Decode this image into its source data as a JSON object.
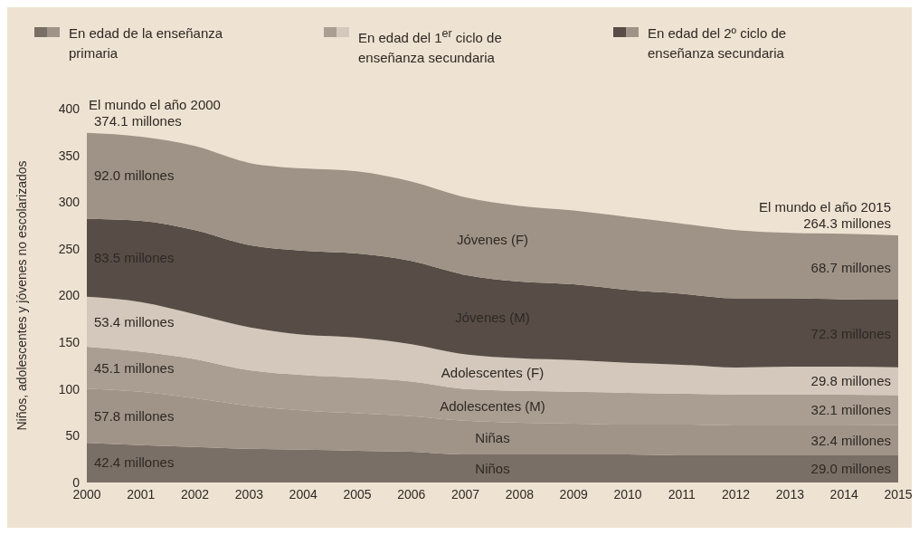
{
  "chart_data": {
    "type": "area",
    "stacked": true,
    "ylabel": "Niños, adolescentes y jóvenes no escolarizados",
    "x": [
      2000,
      2001,
      2002,
      2003,
      2004,
      2005,
      2006,
      2007,
      2008,
      2009,
      2010,
      2011,
      2012,
      2013,
      2014,
      2015
    ],
    "xlim": [
      2000,
      2015
    ],
    "xticks": [
      2000,
      2001,
      2002,
      2003,
      2004,
      2005,
      2006,
      2007,
      2008,
      2009,
      2010,
      2011,
      2012,
      2013,
      2014,
      2015
    ],
    "ylim": [
      0,
      400
    ],
    "yticks": [
      0,
      50,
      100,
      150,
      200,
      250,
      300,
      350,
      400
    ],
    "grid": false,
    "series": [
      {
        "name": "Niños",
        "color": "#7a6f66",
        "values": [
          42.4,
          40,
          38,
          36,
          35,
          34,
          33,
          30,
          30,
          30,
          30,
          29,
          29,
          29,
          29,
          29.0
        ],
        "value_labels": [
          "42.4 millones",
          null,
          null,
          null,
          null,
          null,
          null,
          null,
          null,
          null,
          null,
          null,
          null,
          null,
          null,
          "29.0 millones"
        ]
      },
      {
        "name": "Niñas",
        "color": "#a09489",
        "values": [
          57.8,
          57,
          52,
          46,
          42,
          40,
          38,
          36,
          34,
          33,
          32,
          33,
          32,
          32,
          32,
          32.4
        ],
        "value_labels": [
          "57.8 millones",
          null,
          null,
          null,
          null,
          null,
          null,
          null,
          null,
          null,
          null,
          null,
          null,
          null,
          null,
          "32.4 millones"
        ]
      },
      {
        "name": "Adolescentes (M)",
        "color": "#aa9e92",
        "values": [
          45.1,
          43,
          42,
          38,
          38,
          38,
          37,
          34,
          34,
          34,
          34,
          33,
          33,
          33,
          33,
          32.1
        ],
        "value_labels": [
          "45.1 millones",
          null,
          null,
          null,
          null,
          null,
          null,
          null,
          null,
          null,
          null,
          null,
          null,
          null,
          null,
          "32.1 millones"
        ]
      },
      {
        "name": "Adolescentes (F)",
        "color": "#d3c8bb",
        "values": [
          53.4,
          53,
          48,
          46,
          43,
          43,
          40,
          37,
          35,
          34,
          32,
          31,
          29,
          30,
          30,
          29.8
        ],
        "value_labels": [
          "53.4 millones",
          null,
          null,
          null,
          null,
          null,
          null,
          null,
          null,
          null,
          null,
          null,
          null,
          null,
          null,
          "29.8 millones"
        ]
      },
      {
        "name": "Jóvenes (M)",
        "color": "#574d46",
        "values": [
          83.5,
          87,
          90,
          88,
          90,
          90,
          89,
          85,
          82,
          81,
          78,
          76,
          74,
          73,
          72,
          72.3
        ],
        "value_labels": [
          "83.5 millones",
          null,
          null,
          null,
          null,
          null,
          null,
          null,
          null,
          null,
          null,
          null,
          null,
          null,
          null,
          "72.3 millones"
        ]
      },
      {
        "name": "Jóvenes (F)",
        "color": "#9f9387",
        "values": [
          92.0,
          90,
          90,
          88,
          88,
          88,
          85,
          83,
          81,
          79,
          78,
          75,
          73,
          70,
          70,
          68.7
        ],
        "value_labels": [
          "92.0 millones",
          null,
          null,
          null,
          null,
          null,
          null,
          null,
          null,
          null,
          null,
          null,
          null,
          null,
          null,
          "68.7 millones"
        ]
      }
    ],
    "annotations": [
      "En edad de la enseñanza primaria",
      "En edad del 1$^{er}$ ciclo de enseñanza secundaria",
      "En edad del 2º ciclo de enseñanza secundaria",
      {
        "text": "El mundo el año 2000\n374.1 millones",
        "x": 2000,
        "y": 374.1
      },
      {
        "text": "El mundo el año 2015\n264.3 millones",
        "x": 2015,
        "y": 264.3
      }
    ]
  }
}
